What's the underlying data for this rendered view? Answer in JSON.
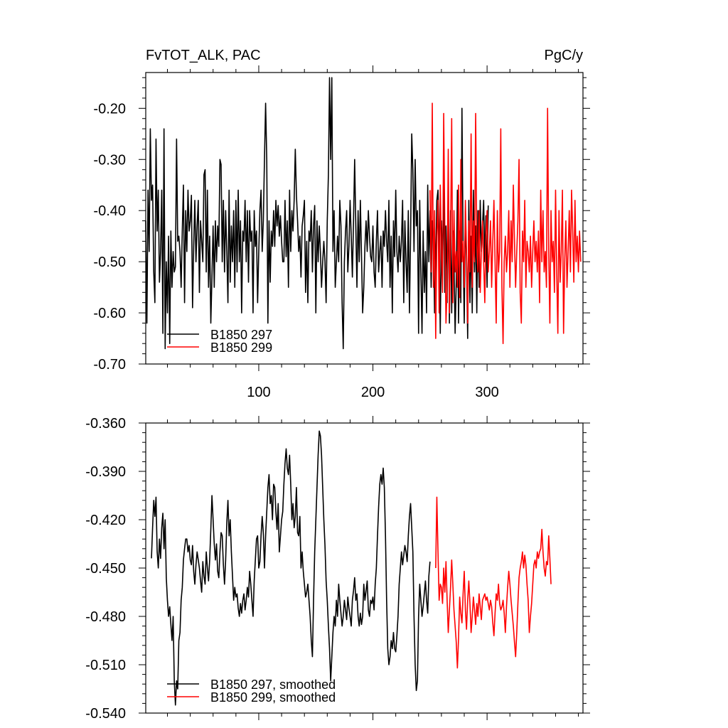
{
  "chart_data": [
    {
      "type": "line",
      "title_left": "FvTOT_ALK, PAC",
      "title_right": "PgC/y",
      "xlim": [
        1,
        384
      ],
      "ylim": [
        -0.7,
        -0.13
      ],
      "x_ticks": [
        100,
        200,
        300
      ],
      "y_ticks": [
        -0.7,
        -0.6,
        -0.5,
        -0.4,
        -0.3,
        -0.2
      ],
      "y_tick_labels": [
        "-0.70",
        "-0.60",
        "-0.50",
        "-0.40",
        "-0.30",
        "-0.20"
      ],
      "legend_position": "bottom-left",
      "series": [
        {
          "name": "B1850 297",
          "color": "#000000",
          "x_start": 1,
          "values": [
            -0.42,
            -0.62,
            -0.36,
            -0.48,
            -0.24,
            -0.38,
            -0.35,
            -0.52,
            -0.58,
            -0.26,
            -0.44,
            -0.36,
            -0.54,
            -0.48,
            -0.36,
            -0.64,
            -0.24,
            -0.67,
            -0.5,
            -0.6,
            -0.45,
            -0.66,
            -0.44,
            -0.55,
            -0.48,
            -0.52,
            -0.51,
            -0.26,
            -0.46,
            -0.45,
            -0.48,
            -0.55,
            -0.44,
            -0.35,
            -0.58,
            -0.4,
            -0.48,
            -0.36,
            -0.44,
            -0.42,
            -0.37,
            -0.59,
            -0.47,
            -0.38,
            -0.5,
            -0.43,
            -0.38,
            -0.56,
            -0.42,
            -0.46,
            -0.5,
            -0.33,
            -0.32,
            -0.52,
            -0.36,
            -0.55,
            -0.45,
            -0.62,
            -0.53,
            -0.43,
            -0.55,
            -0.42,
            -0.5,
            -0.43,
            -0.47,
            -0.3,
            -0.31,
            -0.5,
            -0.38,
            -0.52,
            -0.4,
            -0.48,
            -0.58,
            -0.36,
            -0.54,
            -0.43,
            -0.5,
            -0.4,
            -0.55,
            -0.38,
            -0.52,
            -0.36,
            -0.5,
            -0.42,
            -0.6,
            -0.44,
            -0.46,
            -0.38,
            -0.5,
            -0.4,
            -0.54,
            -0.4,
            -0.46,
            -0.44,
            -0.6,
            -0.4,
            -0.47,
            -0.44,
            -0.58,
            -0.48,
            -0.4,
            -0.36,
            -0.48,
            -0.42,
            -0.3,
            -0.19,
            -0.3,
            -0.62,
            -0.42,
            -0.54,
            -0.44,
            -0.47,
            -0.4,
            -0.47,
            -0.38,
            -0.43,
            -0.39,
            -0.45,
            -0.41,
            -0.46,
            -0.5,
            -0.5,
            -0.38,
            -0.49,
            -0.42,
            -0.55,
            -0.36,
            -0.48,
            -0.4,
            -0.44,
            -0.38,
            -0.28,
            -0.37,
            -0.42,
            -0.48,
            -0.45,
            -0.53,
            -0.43,
            -0.41,
            -0.38,
            -0.56,
            -0.46,
            -0.58,
            -0.44,
            -0.46,
            -0.4,
            -0.52,
            -0.43,
            -0.39,
            -0.6,
            -0.42,
            -0.5,
            -0.43,
            -0.48,
            -0.55,
            -0.5,
            -0.46,
            -0.5,
            -0.58,
            -0.42,
            -0.33,
            -0.14,
            -0.3,
            -0.14,
            -0.48,
            -0.4,
            -0.55,
            -0.5,
            -0.45,
            -0.5,
            -0.38,
            -0.43,
            -0.58,
            -0.67,
            -0.5,
            -0.44,
            -0.4,
            -0.52,
            -0.47,
            -0.38,
            -0.45,
            -0.53,
            -0.42,
            -0.3,
            -0.43,
            -0.55,
            -0.4,
            -0.5,
            -0.38,
            -0.49,
            -0.6,
            -0.55,
            -0.47,
            -0.42,
            -0.48,
            -0.4,
            -0.45,
            -0.49,
            -0.5,
            -0.43,
            -0.52,
            -0.55,
            -0.46,
            -0.4,
            -0.52,
            -0.48,
            -0.45,
            -0.55,
            -0.44,
            -0.47,
            -0.4,
            -0.46,
            -0.5,
            -0.38,
            -0.55,
            -0.45,
            -0.6,
            -0.42,
            -0.49,
            -0.36,
            -0.48,
            -0.52,
            -0.45,
            -0.5,
            -0.46,
            -0.38,
            -0.58,
            -0.42,
            -0.5,
            -0.56,
            -0.4,
            -0.6,
            -0.45,
            -0.25,
            -0.32,
            -0.48,
            -0.3,
            -0.43,
            -0.4,
            -0.64,
            -0.38,
            -0.52,
            -0.64,
            -0.44,
            -0.56,
            -0.48,
            -0.6,
            -0.35,
            -0.5,
            -0.4,
            -0.55,
            -0.42,
            -0.45,
            -0.6,
            -0.5,
            -0.38,
            -0.36,
            -0.46,
            -0.64,
            -0.42,
            -0.5,
            -0.35,
            -0.56,
            -0.43,
            -0.58,
            -0.36,
            -0.62,
            -0.4,
            -0.6,
            -0.44,
            -0.5,
            -0.64,
            -0.54,
            -0.36,
            -0.62,
            -0.44,
            -0.58,
            -0.2,
            -0.47,
            -0.62,
            -0.4,
            -0.5,
            -0.65,
            -0.38,
            -0.58,
            -0.45,
            -0.6,
            -0.36,
            -0.52,
            -0.43,
            -0.6,
            -0.4,
            -0.55,
            -0.38,
            -0.48,
            -0.43,
            -0.38,
            -0.5,
            -0.41,
            -0.55,
            -0.39
          ]
        },
        {
          "name": "B1850 299",
          "color": "#ff0000",
          "x_start": 250,
          "values": [
            -0.36,
            -0.52,
            -0.19,
            -0.55,
            -0.4,
            -0.65,
            -0.45,
            -0.38,
            -0.6,
            -0.35,
            -0.48,
            -0.56,
            -0.21,
            -0.44,
            -0.62,
            -0.55,
            -0.28,
            -0.6,
            -0.46,
            -0.22,
            -0.58,
            -0.4,
            -0.52,
            -0.48,
            -0.55,
            -0.35,
            -0.57,
            -0.3,
            -0.5,
            -0.46,
            -0.55,
            -0.38,
            -0.48,
            -0.62,
            -0.42,
            -0.52,
            -0.25,
            -0.55,
            -0.42,
            -0.5,
            -0.21,
            -0.46,
            -0.52,
            -0.4,
            -0.56,
            -0.48,
            -0.42,
            -0.5,
            -0.58,
            -0.45,
            -0.4,
            -0.52,
            -0.48,
            -0.42,
            -0.55,
            -0.46,
            -0.38,
            -0.5,
            -0.62,
            -0.4,
            -0.52,
            -0.48,
            -0.24,
            -0.55,
            -0.66,
            -0.5,
            -0.45,
            -0.52,
            -0.48,
            -0.4,
            -0.55,
            -0.42,
            -0.5,
            -0.35,
            -0.46,
            -0.55,
            -0.48,
            -0.42,
            -0.3,
            -0.56,
            -0.62,
            -0.44,
            -0.5,
            -0.38,
            -0.55,
            -0.46,
            -0.48,
            -0.52,
            -0.45,
            -0.55,
            -0.48,
            -0.42,
            -0.5,
            -0.46,
            -0.52,
            -0.44,
            -0.58,
            -0.36,
            -0.5,
            -0.4,
            -0.52,
            -0.48,
            -0.55,
            -0.2,
            -0.48,
            -0.62,
            -0.4,
            -0.5,
            -0.46,
            -0.56,
            -0.36,
            -0.52,
            -0.64,
            -0.4,
            -0.54,
            -0.48,
            -0.36,
            -0.64,
            -0.5,
            -0.42,
            -0.55,
            -0.48,
            -0.4,
            -0.52,
            -0.36,
            -0.44,
            -0.54,
            -0.38,
            -0.5,
            -0.45,
            -0.52,
            -0.44,
            -0.5
          ]
        }
      ]
    },
    {
      "type": "line",
      "xlim": [
        1,
        384
      ],
      "ylim": [
        -0.54,
        -0.36
      ],
      "x_ticks": [
        100,
        200,
        300
      ],
      "y_ticks": [
        -0.54,
        -0.51,
        -0.48,
        -0.45,
        -0.42,
        -0.39,
        -0.36
      ],
      "y_tick_labels": [
        "-0.540",
        "-0.510",
        "-0.480",
        "-0.450",
        "-0.420",
        "-0.390",
        "-0.360"
      ],
      "legend_position": "bottom-left",
      "series": [
        {
          "name": "B1850 297, smoothed",
          "color": "#000000",
          "x_start": 6,
          "values": [
            -0.444,
            -0.425,
            -0.408,
            -0.418,
            -0.406,
            -0.44,
            -0.45,
            -0.432,
            -0.444,
            -0.425,
            -0.416,
            -0.438,
            -0.42,
            -0.456,
            -0.47,
            -0.48,
            -0.474,
            -0.485,
            -0.495,
            -0.48,
            -0.52,
            -0.535,
            -0.52,
            -0.525,
            -0.495,
            -0.49,
            -0.47,
            -0.462,
            -0.445,
            -0.438,
            -0.432,
            -0.432,
            -0.44,
            -0.436,
            -0.445,
            -0.448,
            -0.436,
            -0.452,
            -0.46,
            -0.448,
            -0.44,
            -0.445,
            -0.45,
            -0.458,
            -0.465,
            -0.446,
            -0.455,
            -0.46,
            -0.44,
            -0.45,
            -0.458,
            -0.445,
            -0.426,
            -0.405,
            -0.42,
            -0.435,
            -0.445,
            -0.435,
            -0.452,
            -0.456,
            -0.44,
            -0.428,
            -0.43,
            -0.448,
            -0.46,
            -0.445,
            -0.422,
            -0.408,
            -0.43,
            -0.42,
            -0.44,
            -0.455,
            -0.47,
            -0.462,
            -0.468,
            -0.466,
            -0.475,
            -0.48,
            -0.472,
            -0.478,
            -0.47,
            -0.466,
            -0.476,
            -0.47,
            -0.462,
            -0.468,
            -0.452,
            -0.46,
            -0.47,
            -0.48,
            -0.458,
            -0.445,
            -0.432,
            -0.43,
            -0.45,
            -0.446,
            -0.43,
            -0.418,
            -0.428,
            -0.45,
            -0.43,
            -0.415,
            -0.4,
            -0.392,
            -0.41,
            -0.405,
            -0.42,
            -0.398,
            -0.4,
            -0.415,
            -0.426,
            -0.41,
            -0.44,
            -0.43,
            -0.42,
            -0.415,
            -0.398,
            -0.385,
            -0.376,
            -0.388,
            -0.392,
            -0.38,
            -0.398,
            -0.42,
            -0.41,
            -0.425,
            -0.418,
            -0.4,
            -0.428,
            -0.43,
            -0.418,
            -0.45,
            -0.44,
            -0.452,
            -0.46,
            -0.468,
            -0.465,
            -0.46,
            -0.47,
            -0.48,
            -0.495,
            -0.505,
            -0.47,
            -0.44,
            -0.42,
            -0.4,
            -0.38,
            -0.365,
            -0.368,
            -0.38,
            -0.4,
            -0.42,
            -0.436,
            -0.458,
            -0.47,
            -0.486,
            -0.5,
            -0.52,
            -0.505,
            -0.49,
            -0.48,
            -0.486,
            -0.47,
            -0.48,
            -0.46,
            -0.47,
            -0.478,
            -0.486,
            -0.48,
            -0.47,
            -0.476,
            -0.482,
            -0.468,
            -0.475,
            -0.48,
            -0.486,
            -0.47,
            -0.464,
            -0.456,
            -0.47,
            -0.466,
            -0.48,
            -0.486,
            -0.478,
            -0.485,
            -0.48,
            -0.46,
            -0.47,
            -0.464,
            -0.458,
            -0.476,
            -0.48,
            -0.47,
            -0.472,
            -0.468,
            -0.476,
            -0.46,
            -0.45,
            -0.43,
            -0.412,
            -0.398,
            -0.392,
            -0.398,
            -0.388,
            -0.4,
            -0.43,
            -0.47,
            -0.5,
            -0.51,
            -0.505,
            -0.495,
            -0.5,
            -0.49,
            -0.5,
            -0.502,
            -0.492,
            -0.48,
            -0.46,
            -0.45,
            -0.44,
            -0.448,
            -0.442,
            -0.436,
            -0.44,
            -0.446,
            -0.43,
            -0.418,
            -0.41,
            -0.425,
            -0.44,
            -0.48,
            -0.51,
            -0.526,
            -0.52,
            -0.48,
            -0.46,
            -0.47,
            -0.48,
            -0.474,
            -0.466,
            -0.458,
            -0.47,
            -0.478,
            -0.455,
            -0.446
          ]
        },
        {
          "name": "B1850 299, smoothed",
          "color": "#ff0000",
          "x_start": 255,
          "values": [
            -0.45,
            -0.406,
            -0.44,
            -0.47,
            -0.46,
            -0.462,
            -0.472,
            -0.45,
            -0.465,
            -0.446,
            -0.47,
            -0.49,
            -0.476,
            -0.462,
            -0.445,
            -0.46,
            -0.476,
            -0.486,
            -0.496,
            -0.512,
            -0.494,
            -0.468,
            -0.478,
            -0.484,
            -0.466,
            -0.452,
            -0.476,
            -0.488,
            -0.47,
            -0.458,
            -0.472,
            -0.49,
            -0.48,
            -0.468,
            -0.476,
            -0.485,
            -0.472,
            -0.48,
            -0.466,
            -0.474,
            -0.482,
            -0.47,
            -0.468,
            -0.466,
            -0.47,
            -0.468,
            -0.472,
            -0.476,
            -0.47,
            -0.474,
            -0.484,
            -0.492,
            -0.478,
            -0.466,
            -0.47,
            -0.46,
            -0.472,
            -0.476,
            -0.474,
            -0.47,
            -0.478,
            -0.49,
            -0.474,
            -0.462,
            -0.452,
            -0.46,
            -0.47,
            -0.478,
            -0.486,
            -0.496,
            -0.505,
            -0.49,
            -0.472,
            -0.456,
            -0.45,
            -0.446,
            -0.44,
            -0.45,
            -0.442,
            -0.448,
            -0.46,
            -0.47,
            -0.49,
            -0.48,
            -0.472,
            -0.46,
            -0.448,
            -0.445,
            -0.45,
            -0.44,
            -0.444,
            -0.44,
            -0.438,
            -0.426,
            -0.44,
            -0.45,
            -0.455,
            -0.446,
            -0.448,
            -0.43,
            -0.444,
            -0.46
          ]
        }
      ]
    }
  ]
}
